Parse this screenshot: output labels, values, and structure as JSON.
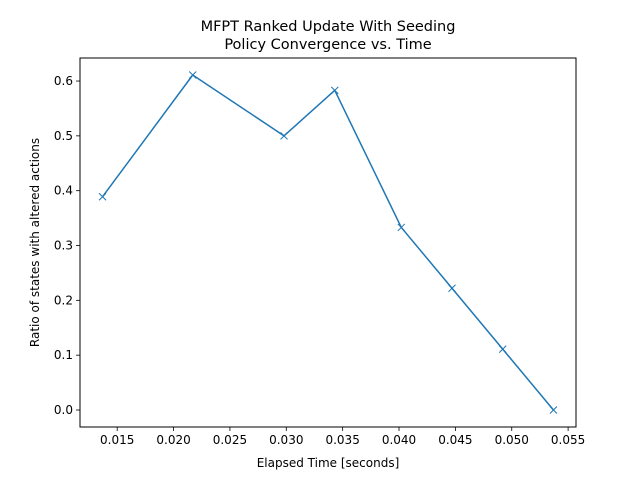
{
  "chart_data": {
    "type": "line",
    "title": "MFPT Ranked Update With Seeding",
    "subtitle": "Policy Convergence vs. Time",
    "xlabel": "Elapsed Time [seconds]",
    "ylabel": "Ratio of states with altered actions",
    "xlim": [
      0.0117,
      0.0557
    ],
    "ylim": [
      -0.031,
      0.642
    ],
    "xticks": [
      0.015,
      0.02,
      0.025,
      0.03,
      0.035,
      0.04,
      0.045,
      0.05,
      0.055
    ],
    "xtick_labels": [
      "0.015",
      "0.020",
      "0.025",
      "0.030",
      "0.035",
      "0.040",
      "0.045",
      "0.050",
      "0.055"
    ],
    "yticks": [
      0.0,
      0.1,
      0.2,
      0.3,
      0.4,
      0.5,
      0.6
    ],
    "ytick_labels": [
      "0.0",
      "0.1",
      "0.2",
      "0.3",
      "0.4",
      "0.5",
      "0.6"
    ],
    "grid": false,
    "marker": "x",
    "color": "#1f77b4",
    "series": [
      {
        "x": [
          0.0137,
          0.0217,
          0.0298,
          0.0343,
          0.0402,
          0.0447,
          0.0492,
          0.0537
        ],
        "y": [
          0.389,
          0.611,
          0.5,
          0.583,
          0.333,
          0.222,
          0.111,
          0.0
        ]
      }
    ]
  }
}
